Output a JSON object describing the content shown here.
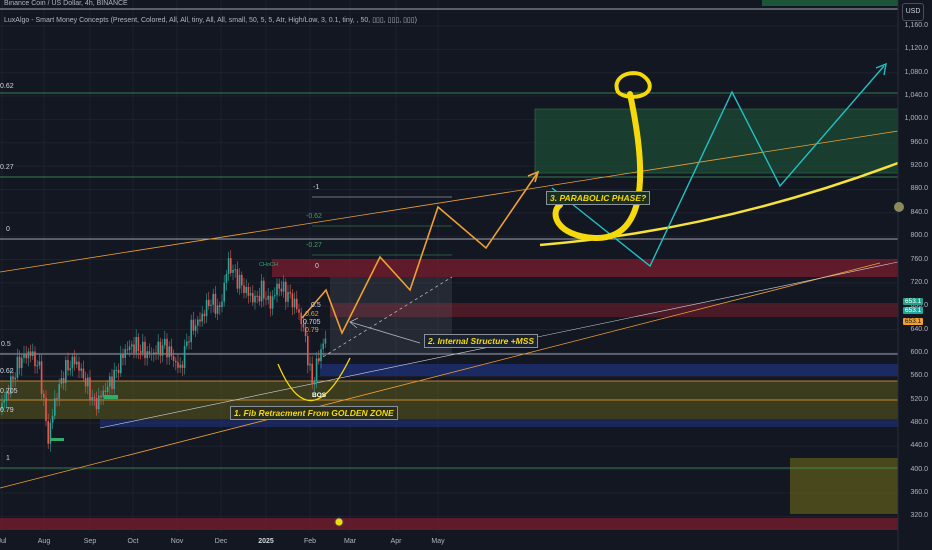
{
  "header": {
    "line1": "Binance Coin / US Dollar, 4h, BINANCE",
    "line2": "LuxAlgo - Smart Money Concepts (Present, Colored, All, All, tiny, All, All, small, 50, 5, 5, Atr, High/Low, 3, 0.1, tiny, , 50, ▯▯▯, ▯▯▯, ▯▯▯)"
  },
  "currency_button": "USD",
  "price_axis": [
    "1,160.0",
    "1,120.0",
    "1,080.0",
    "1,040.0",
    "1,000.0",
    "960.0",
    "920.0",
    "880.0",
    "840.0",
    "800.0",
    "760.0",
    "720.0",
    "680.0",
    "640.0",
    "600.0",
    "560.0",
    "520.0",
    "480.0",
    "440.0",
    "400.0",
    "360.0",
    "320.0"
  ],
  "price_badges": {
    "upper": "653.1",
    "lower": "653.1",
    "cyan": "653.1"
  },
  "time_axis": [
    "Jul",
    "Aug",
    "Sep",
    "Oct",
    "Nov",
    "Dec",
    "2025",
    "Feb",
    "Mar",
    "Apr",
    "May"
  ],
  "left_fib_labels": [
    "0",
    "0.27",
    "0.62",
    "0.5",
    "0.62",
    "0.705",
    "0.79",
    "1"
  ],
  "inner_fib_labels": [
    "-1",
    "-0.62",
    "-0.27",
    "0",
    "0.5",
    "0.62",
    "0.705",
    "0.79"
  ],
  "smc_labels": {
    "choch": "CHoCH",
    "bos": "BOS"
  },
  "annotations": {
    "step1": "1. Fib Retracment From GOLDEN ZONE",
    "step2": "2. Internal Structure +MSS",
    "step3": "3. PARABOLIC PHASE?"
  },
  "colors": {
    "background": "#131722",
    "orange_path": "#f0a033",
    "cyan_path": "#22c1c3",
    "parabola": "#f5e23c",
    "hook": "#f5d90a",
    "green_zone": "#1e5c3a",
    "red_zone": "#7a1e2c",
    "blue_zone": "#1e2e6e",
    "olive_zone": "#5c5a1c"
  }
}
